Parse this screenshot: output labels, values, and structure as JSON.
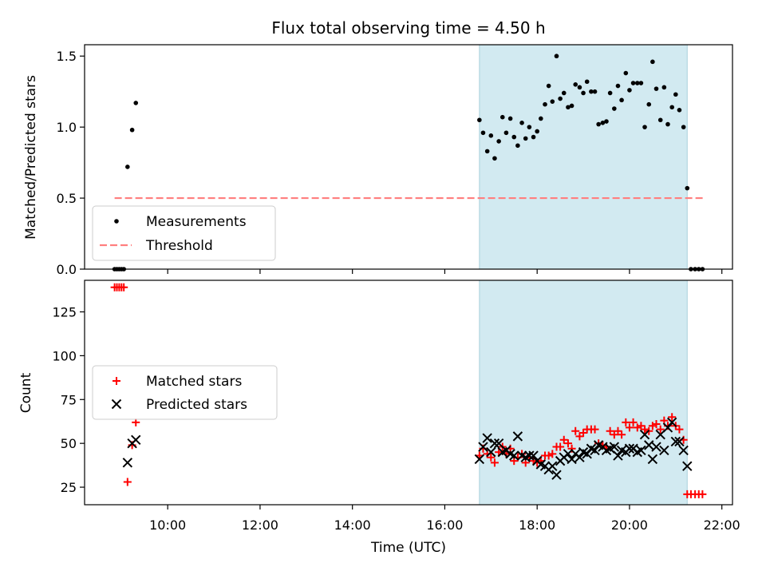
{
  "chart_data": [
    {
      "panel": "top",
      "type": "scatter",
      "title": "Flux total observing time = 4.50 h",
      "xlabel": "",
      "ylabel": "Matched/Predicted stars",
      "x_unit": "hours UTC",
      "xlim": [
        8.2,
        22.23
      ],
      "ylim": [
        0,
        1.58
      ],
      "yticks": [
        0.0,
        0.5,
        1.0,
        1.5
      ],
      "ytick_labels": [
        "0.0",
        "0.5",
        "1.0",
        "1.5"
      ],
      "shaded_span": [
        16.75,
        21.25
      ],
      "shade_color": "#add8e6",
      "grid": false,
      "legend_position": "lower-left",
      "series": [
        {
          "name": "Measurements",
          "kind": "points",
          "color": "#000000",
          "points": [
            [
              8.85,
              0.0
            ],
            [
              8.9,
              0.0
            ],
            [
              8.95,
              0.0
            ],
            [
              9.0,
              0.0
            ],
            [
              9.05,
              0.0
            ],
            [
              9.13,
              0.72
            ],
            [
              9.23,
              0.98
            ],
            [
              9.31,
              1.17
            ],
            [
              16.75,
              1.05
            ],
            [
              16.83,
              0.96
            ],
            [
              16.92,
              0.83
            ],
            [
              17.0,
              0.94
            ],
            [
              17.08,
              0.78
            ],
            [
              17.17,
              0.9
            ],
            [
              17.25,
              1.07
            ],
            [
              17.33,
              0.96
            ],
            [
              17.42,
              1.06
            ],
            [
              17.5,
              0.93
            ],
            [
              17.58,
              0.87
            ],
            [
              17.67,
              1.03
            ],
            [
              17.75,
              0.92
            ],
            [
              17.83,
              1.0
            ],
            [
              17.92,
              0.93
            ],
            [
              18.0,
              0.97
            ],
            [
              18.08,
              1.06
            ],
            [
              18.17,
              1.16
            ],
            [
              18.25,
              1.29
            ],
            [
              18.33,
              1.18
            ],
            [
              18.42,
              1.5
            ],
            [
              18.5,
              1.2
            ],
            [
              18.58,
              1.24
            ],
            [
              18.67,
              1.14
            ],
            [
              18.75,
              1.15
            ],
            [
              18.83,
              1.3
            ],
            [
              18.92,
              1.28
            ],
            [
              19.0,
              1.24
            ],
            [
              19.08,
              1.32
            ],
            [
              19.17,
              1.25
            ],
            [
              19.25,
              1.25
            ],
            [
              19.33,
              1.02
            ],
            [
              19.42,
              1.03
            ],
            [
              19.5,
              1.04
            ],
            [
              19.58,
              1.24
            ],
            [
              19.67,
              1.13
            ],
            [
              19.75,
              1.29
            ],
            [
              19.83,
              1.19
            ],
            [
              19.92,
              1.38
            ],
            [
              20.0,
              1.26
            ],
            [
              20.08,
              1.31
            ],
            [
              20.17,
              1.31
            ],
            [
              20.25,
              1.31
            ],
            [
              20.33,
              1.0
            ],
            [
              20.42,
              1.16
            ],
            [
              20.5,
              1.46
            ],
            [
              20.58,
              1.27
            ],
            [
              20.67,
              1.05
            ],
            [
              20.75,
              1.28
            ],
            [
              20.83,
              1.02
            ],
            [
              20.92,
              1.14
            ],
            [
              21.0,
              1.23
            ],
            [
              21.08,
              1.12
            ],
            [
              21.17,
              1.0
            ],
            [
              21.25,
              0.57
            ],
            [
              21.33,
              0.0
            ],
            [
              21.42,
              0.0
            ],
            [
              21.5,
              0.0
            ],
            [
              21.58,
              0.0
            ]
          ]
        },
        {
          "name": "Threshold",
          "kind": "dashed-line",
          "color": "#ff7f7f",
          "x": [
            8.85,
            21.62
          ],
          "y": [
            0.5,
            0.5
          ]
        }
      ]
    },
    {
      "panel": "bottom",
      "type": "scatter",
      "xlabel": "Time (UTC)",
      "ylabel": "Count",
      "x_unit": "hours UTC",
      "xlim": [
        8.2,
        22.23
      ],
      "ylim": [
        15,
        143
      ],
      "yticks": [
        25,
        50,
        75,
        100,
        125
      ],
      "ytick_labels": [
        "25",
        "50",
        "75",
        "100",
        "125"
      ],
      "xticks": [
        10,
        12,
        14,
        16,
        18,
        20,
        22
      ],
      "xtick_labels": [
        "10:00",
        "12:00",
        "14:00",
        "16:00",
        "18:00",
        "20:00",
        "22:00"
      ],
      "shaded_span": [
        16.75,
        21.25
      ],
      "shade_color": "#add8e6",
      "grid": false,
      "legend_position": "center-left",
      "series": [
        {
          "name": "Matched stars",
          "kind": "plus",
          "color": "#ff0000",
          "points": [
            [
              8.85,
              139
            ],
            [
              8.9,
              139
            ],
            [
              8.95,
              139
            ],
            [
              9.0,
              139
            ],
            [
              9.05,
              139
            ],
            [
              9.13,
              28
            ],
            [
              9.23,
              49
            ],
            [
              9.31,
              62
            ],
            [
              16.75,
              43
            ],
            [
              16.83,
              47
            ],
            [
              16.92,
              44
            ],
            [
              17.0,
              42
            ],
            [
              17.08,
              39
            ],
            [
              17.17,
              45
            ],
            [
              17.25,
              48
            ],
            [
              17.33,
              44
            ],
            [
              17.42,
              47
            ],
            [
              17.5,
              40
            ],
            [
              17.58,
              42
            ],
            [
              17.67,
              44
            ],
            [
              17.75,
              39
            ],
            [
              17.83,
              42
            ],
            [
              17.92,
              40
            ],
            [
              18.0,
              39
            ],
            [
              18.08,
              40
            ],
            [
              18.17,
              43
            ],
            [
              18.25,
              43
            ],
            [
              18.33,
              44
            ],
            [
              18.42,
              48
            ],
            [
              18.5,
              48
            ],
            [
              18.58,
              52
            ],
            [
              18.67,
              50
            ],
            [
              18.75,
              47
            ],
            [
              18.83,
              57
            ],
            [
              18.92,
              54
            ],
            [
              19.0,
              56
            ],
            [
              19.08,
              58
            ],
            [
              19.17,
              58
            ],
            [
              19.25,
              58
            ],
            [
              19.33,
              50
            ],
            [
              19.42,
              49
            ],
            [
              19.5,
              48
            ],
            [
              19.58,
              57
            ],
            [
              19.67,
              55
            ],
            [
              19.75,
              57
            ],
            [
              19.83,
              55
            ],
            [
              19.92,
              62
            ],
            [
              20.0,
              59
            ],
            [
              20.08,
              62
            ],
            [
              20.17,
              59
            ],
            [
              20.25,
              60
            ],
            [
              20.33,
              58
            ],
            [
              20.42,
              57
            ],
            [
              20.5,
              60
            ],
            [
              20.58,
              61
            ],
            [
              20.67,
              58
            ],
            [
              20.75,
              63
            ],
            [
              20.83,
              60
            ],
            [
              20.92,
              65
            ],
            [
              21.0,
              60
            ],
            [
              21.08,
              58
            ],
            [
              21.17,
              52
            ],
            [
              21.25,
              21
            ],
            [
              21.33,
              21
            ],
            [
              21.42,
              21
            ],
            [
              21.5,
              21
            ],
            [
              21.58,
              21
            ]
          ]
        },
        {
          "name": "Predicted stars",
          "kind": "x",
          "color": "#000000",
          "points": [
            [
              9.13,
              39
            ],
            [
              9.23,
              50
            ],
            [
              9.31,
              52
            ],
            [
              16.75,
              41
            ],
            [
              16.83,
              48
            ],
            [
              16.92,
              53
            ],
            [
              17.0,
              45
            ],
            [
              17.08,
              50
            ],
            [
              17.17,
              50
            ],
            [
              17.25,
              45
            ],
            [
              17.33,
              46
            ],
            [
              17.42,
              44
            ],
            [
              17.5,
              43
            ],
            [
              17.58,
              54
            ],
            [
              17.67,
              43
            ],
            [
              17.75,
              42
            ],
            [
              17.83,
              43
            ],
            [
              17.92,
              43
            ],
            [
              18.0,
              40
            ],
            [
              18.08,
              38
            ],
            [
              18.17,
              37
            ],
            [
              18.25,
              35
            ],
            [
              18.33,
              37
            ],
            [
              18.42,
              32
            ],
            [
              18.5,
              40
            ],
            [
              18.58,
              42
            ],
            [
              18.67,
              44
            ],
            [
              18.75,
              41
            ],
            [
              18.83,
              44
            ],
            [
              18.92,
              42
            ],
            [
              19.0,
              45
            ],
            [
              19.08,
              44
            ],
            [
              19.17,
              47
            ],
            [
              19.25,
              46
            ],
            [
              19.33,
              49
            ],
            [
              19.42,
              48
            ],
            [
              19.5,
              46
            ],
            [
              19.58,
              47
            ],
            [
              19.67,
              48
            ],
            [
              19.75,
              43
            ],
            [
              19.83,
              46
            ],
            [
              19.92,
              45
            ],
            [
              20.0,
              47
            ],
            [
              20.08,
              47
            ],
            [
              20.17,
              45
            ],
            [
              20.25,
              46
            ],
            [
              20.33,
              55
            ],
            [
              20.42,
              49
            ],
            [
              20.5,
              41
            ],
            [
              20.58,
              48
            ],
            [
              20.67,
              55
            ],
            [
              20.75,
              46
            ],
            [
              20.83,
              59
            ],
            [
              20.92,
              62
            ],
            [
              21.0,
              51
            ],
            [
              21.08,
              51
            ],
            [
              21.17,
              46
            ],
            [
              21.25,
              37
            ]
          ]
        }
      ]
    }
  ]
}
